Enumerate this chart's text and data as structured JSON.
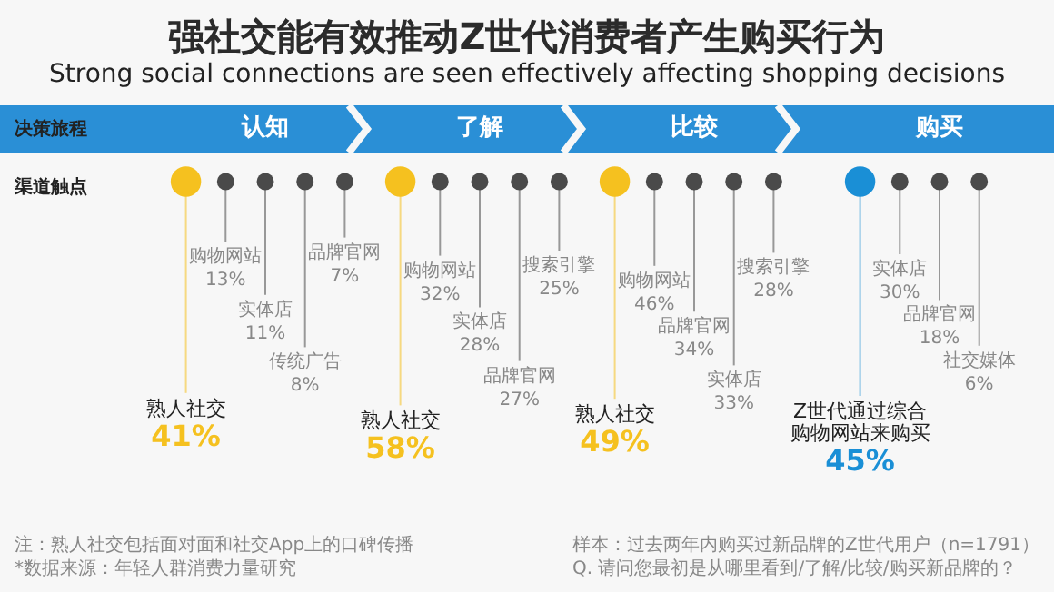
{
  "chart_data": [
    {
      "type": "other",
      "title": "强社交能有效推动Z世代消费者产生购买行为",
      "subtitle": "Strong social connections are seen effectively affecting shopping decisions",
      "annotations": [
        "决策旅程",
        "渠道触点"
      ]
    },
    {
      "type": "other",
      "title": "认知",
      "categories": [
        "熟人社交",
        "购物网站",
        "实体店",
        "传统广告",
        "品牌官网"
      ],
      "values": [
        41,
        13,
        11,
        8,
        7
      ],
      "value_labels": [
        "41%",
        "13%",
        "11%",
        "8%",
        "7%"
      ],
      "colors": [
        "#f5c11f",
        "#4a4a4a",
        "#4a4a4a",
        "#4a4a4a",
        "#4a4a4a"
      ],
      "annotations": [
        "注：熟人社交包括面对面和社交App上的口碑传播",
        "*数据来源：年轻人群消费力量研究"
      ]
    },
    {
      "type": "other",
      "title": "了解",
      "categories": [
        "熟人社交",
        "购物网站",
        "实体店",
        "品牌官网",
        "搜索引擎"
      ],
      "values": [
        58,
        32,
        28,
        27,
        25
      ],
      "value_labels": [
        "58%",
        "32%",
        "28%",
        "27%",
        "25%"
      ],
      "colors": [
        "#f5c11f",
        "#4a4a4a",
        "#4a4a4a",
        "#4a4a4a",
        "#4a4a4a"
      ]
    },
    {
      "type": "other",
      "title": "比较",
      "categories": [
        "熟人社交",
        "购物网站",
        "品牌官网",
        "实体店",
        "搜索引擎"
      ],
      "values": [
        49,
        46,
        34,
        33,
        28
      ],
      "value_labels": [
        "49%",
        "46%",
        "34%",
        "33%",
        "28%"
      ],
      "colors": [
        "#f5c11f",
        "#4a4a4a",
        "#4a4a4a",
        "#4a4a4a",
        "#4a4a4a"
      ]
    },
    {
      "type": "other",
      "title": "购买",
      "categories": [
        "Z世代通过综合购物网站来购买",
        "实体店",
        "品牌官网",
        "社交媒体"
      ],
      "values": [
        45,
        30,
        18,
        6
      ],
      "value_labels": [
        "45%",
        "30%",
        "18%",
        "6%"
      ],
      "colors": [
        "#1a8fd6",
        "#4a4a4a",
        "#4a4a4a",
        "#4a4a4a"
      ],
      "annotations": [
        "样本：过去两年内购买过新品牌的Z世代用户（n=1791）",
        "Q. 请问您最初是从哪里看到/了解/比较/购买新品牌的？"
      ]
    }
  ]
}
